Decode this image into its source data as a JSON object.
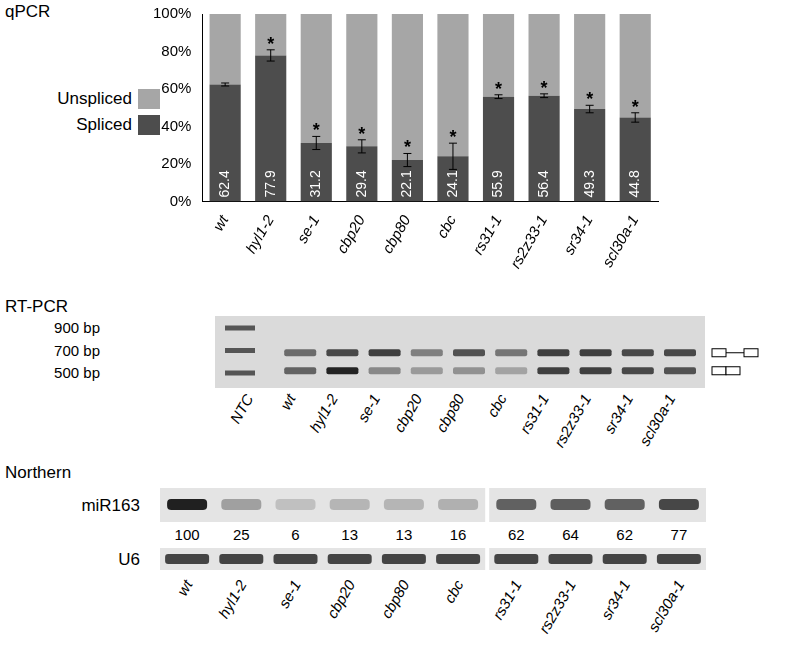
{
  "chart_data": {
    "type": "bar",
    "title": "qPCR",
    "categories": [
      "wt",
      "hyl1-2",
      "se-1",
      "cbp20",
      "cbp80",
      "cbc",
      "rs31-1",
      "rs2z33-1",
      "sr34-1",
      "scl30a-1"
    ],
    "series": [
      {
        "name": "Spliced",
        "color": "#4d4d4d",
        "values": [
          62.4,
          77.9,
          31.2,
          29.4,
          22.1,
          24.1,
          55.9,
          56.4,
          49.3,
          44.8
        ],
        "errors": [
          0.8,
          3,
          3.5,
          3.5,
          3.5,
          7,
          1,
          1,
          2,
          2.5
        ],
        "data_labels": true
      },
      {
        "name": "Unspliced",
        "color": "#a6a6a6",
        "values": [
          37.6,
          22.1,
          68.8,
          70.6,
          77.9,
          75.9,
          44.1,
          43.6,
          50.7,
          55.2
        ]
      }
    ],
    "annotations": [
      null,
      "*",
      "*",
      "*",
      "*",
      "*",
      "*",
      "*",
      "*",
      "*"
    ],
    "stacked": true,
    "grid": false,
    "legend": "left",
    "ylim": [
      0,
      100
    ],
    "yticks": [
      {
        "value": 0,
        "label": "0%"
      },
      {
        "value": 20,
        "label": "20%"
      },
      {
        "value": 40,
        "label": "40%"
      },
      {
        "value": 60,
        "label": "60%"
      },
      {
        "value": 80,
        "label": "80%"
      },
      {
        "value": 100,
        "label": "100%"
      }
    ]
  },
  "rt_pcr": {
    "title": "RT-PCR",
    "ladder": [
      {
        "value": 900,
        "label": "900 bp"
      },
      {
        "value": 700,
        "label": "700 bp"
      },
      {
        "value": 500,
        "label": "500 bp"
      }
    ],
    "lanes": [
      "NTC",
      "wt",
      "hyl1-2",
      "se-1",
      "cbp20",
      "cbp80",
      "cbc",
      "rs31-1",
      "rs2z33-1",
      "sr34-1",
      "scl30a-1"
    ],
    "bands": [
      {
        "size_bp": 680,
        "intensity": [
          0,
          0.6,
          0.8,
          0.85,
          0.5,
          0.75,
          0.55,
          0.85,
          0.85,
          0.8,
          0.8
        ]
      },
      {
        "size_bp": 520,
        "intensity": [
          0,
          0.65,
          1,
          0.45,
          0.35,
          0.4,
          0.3,
          0.85,
          0.85,
          0.8,
          0.75
        ]
      }
    ]
  },
  "northern": {
    "title": "Northern",
    "probes": [
      "miR163",
      "U6"
    ],
    "panels": [
      {
        "lanes": [
          "wt",
          "hyl1-2",
          "se-1",
          "cbp20",
          "cbp80",
          "cbc"
        ],
        "miR163": [
          100,
          25,
          6,
          13,
          13,
          16
        ]
      },
      {
        "lanes": [
          "rs31-1",
          "rs2z33-1",
          "sr34-1",
          "scl30a-1"
        ],
        "miR163": [
          62,
          64,
          62,
          77
        ]
      }
    ]
  }
}
